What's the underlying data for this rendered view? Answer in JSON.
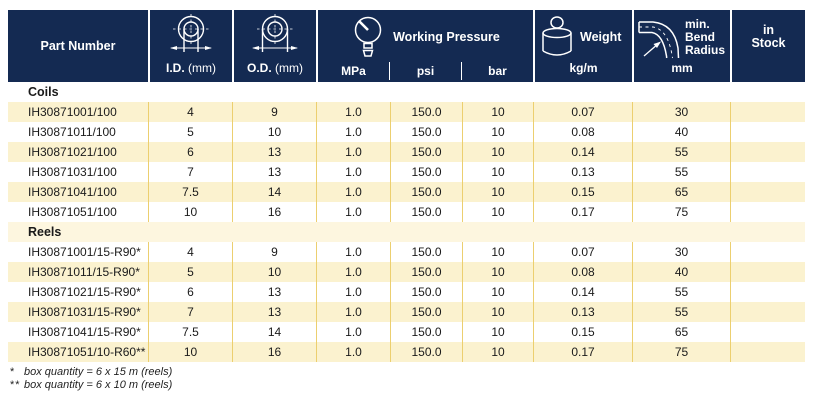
{
  "colors": {
    "header_bg": "#142a52",
    "header_text": "#ffffff",
    "row_cream": "#fbf2cf",
    "section_cream": "#fdf6df",
    "gold": "#eccf6f",
    "body_text": "#1a1a1a",
    "page_bg": "#ffffff"
  },
  "icons": {
    "inner_diameter": "inner-diameter-icon",
    "outer_diameter": "outer-diameter-icon",
    "pressure_gauge": "pressure-gauge-icon",
    "weight": "weight-icon",
    "bend_radius": "bend-radius-icon"
  },
  "table": {
    "header": {
      "part_number": "Part Number",
      "id_label": "I.D.",
      "id_unit": " (mm)",
      "od_label": "O.D.",
      "od_unit": " (mm)",
      "working_pressure": "Working Pressure",
      "wp_units": [
        "MPa",
        "psi",
        "bar"
      ],
      "weight": "Weight",
      "weight_unit": "kg/m",
      "bend_line1": "min.",
      "bend_line2": "Bend",
      "bend_line3": "Radius",
      "bend_unit": "mm",
      "stock_line1": "in",
      "stock_line2": "Stock"
    },
    "cell_names": [
      "cell-part-number",
      "cell-inner-diameter",
      "cell-outer-diameter",
      "cell-pressure-mpa",
      "cell-pressure-psi",
      "cell-pressure-bar",
      "cell-weight",
      "cell-bend-radius",
      "cell-in-stock"
    ],
    "sections": [
      {
        "name": "Coils",
        "rows": [
          [
            "IH30871001/100",
            "4",
            "9",
            "1.0",
            "150.0",
            "10",
            "0.07",
            "30",
            ""
          ],
          [
            "IH30871011/100",
            "5",
            "10",
            "1.0",
            "150.0",
            "10",
            "0.08",
            "40",
            ""
          ],
          [
            "IH30871021/100",
            "6",
            "13",
            "1.0",
            "150.0",
            "10",
            "0.14",
            "55",
            ""
          ],
          [
            "IH30871031/100",
            "7",
            "13",
            "1.0",
            "150.0",
            "10",
            "0.13",
            "55",
            ""
          ],
          [
            "IH30871041/100",
            "7.5",
            "14",
            "1.0",
            "150.0",
            "10",
            "0.15",
            "65",
            ""
          ],
          [
            "IH30871051/100",
            "10",
            "16",
            "1.0",
            "150.0",
            "10",
            "0.17",
            "75",
            ""
          ]
        ]
      },
      {
        "name": "Reels",
        "rows": [
          [
            "IH30871001/15-R90*",
            "4",
            "9",
            "1.0",
            "150.0",
            "10",
            "0.07",
            "30",
            ""
          ],
          [
            "IH30871011/15-R90*",
            "5",
            "10",
            "1.0",
            "150.0",
            "10",
            "0.08",
            "40",
            ""
          ],
          [
            "IH30871021/15-R90*",
            "6",
            "13",
            "1.0",
            "150.0",
            "10",
            "0.14",
            "55",
            ""
          ],
          [
            "IH30871031/15-R90*",
            "7",
            "13",
            "1.0",
            "150.0",
            "10",
            "0.13",
            "55",
            ""
          ],
          [
            "IH30871041/15-R90*",
            "7.5",
            "14",
            "1.0",
            "150.0",
            "10",
            "0.15",
            "65",
            ""
          ],
          [
            "IH30871051/10-R60**",
            "10",
            "16",
            "1.0",
            "150.0",
            "10",
            "0.17",
            "75",
            ""
          ]
        ]
      }
    ]
  },
  "footnotes": [
    {
      "marker": "*",
      "text": "box quantity = 6 x 15 m (reels)"
    },
    {
      "marker": "**",
      "text": "box quantity = 6 x 10 m (reels)"
    }
  ]
}
